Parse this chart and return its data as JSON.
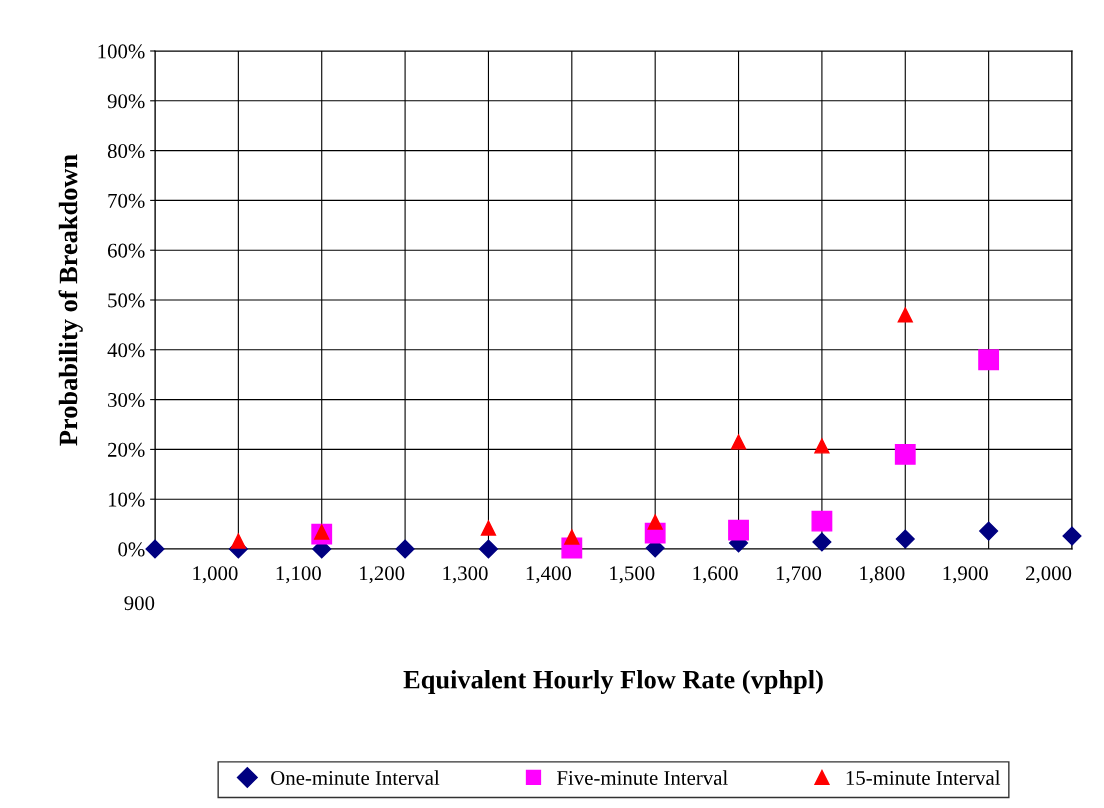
{
  "chart_data": {
    "type": "scatter",
    "xlabel": "Equivalent Hourly Flow Rate (vphpl)",
    "ylabel": "Probability of Breakdown",
    "categories": [
      "900",
      "1,000",
      "1,100",
      "1,200",
      "1,300",
      "1,400",
      "1,500",
      "1,600",
      "1,700",
      "1,800",
      "1,900",
      "2,000"
    ],
    "series": [
      {
        "name": "One-minute Interval",
        "color": "#000080",
        "marker": "diamond",
        "values": [
          0,
          0,
          0,
          0,
          0,
          null,
          0.2,
          1.2,
          1.4,
          2,
          3.6,
          2.6
        ]
      },
      {
        "name": "Five-minute Interval",
        "color": "#ff00ff",
        "marker": "square",
        "values": [
          null,
          null,
          3,
          null,
          null,
          0.2,
          3.2,
          3.8,
          5.6,
          19,
          38,
          null
        ]
      },
      {
        "name": "15-minute Interval",
        "color": "#ff0000",
        "marker": "triangle",
        "values": [
          null,
          1.6,
          3.4,
          null,
          4.2,
          2.4,
          5.4,
          21.5,
          20.7,
          47,
          null,
          null
        ]
      }
    ],
    "ylim": [
      0,
      100
    ],
    "yticks": [
      {
        "value": 0,
        "label": "0%"
      },
      {
        "value": 10,
        "label": "10%"
      },
      {
        "value": 20,
        "label": "20%"
      },
      {
        "value": 30,
        "label": "30%"
      },
      {
        "value": 40,
        "label": "40%"
      },
      {
        "value": 50,
        "label": "50%"
      },
      {
        "value": 60,
        "label": "60%"
      },
      {
        "value": 70,
        "label": "70%"
      },
      {
        "value": 80,
        "label": "80%"
      },
      {
        "value": 90,
        "label": "90%"
      },
      {
        "value": 100,
        "label": "100%"
      }
    ],
    "grid": true,
    "legend": "bottom"
  }
}
